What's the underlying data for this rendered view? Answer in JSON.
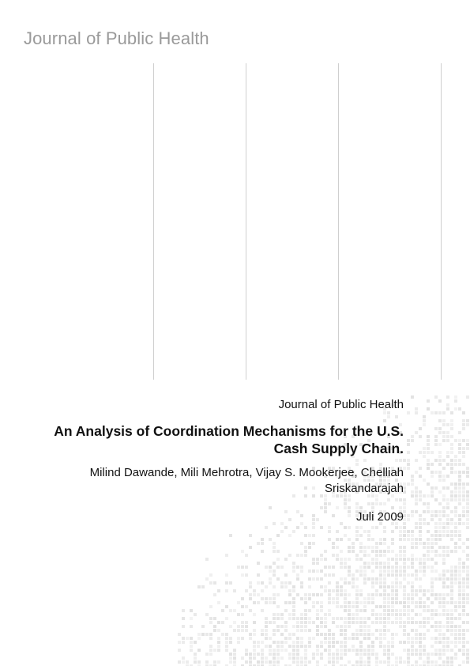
{
  "header": {
    "journal": "Journal of Public Health"
  },
  "info": {
    "journal_name": "Journal of Public Health",
    "title_lines": [
      "An Analysis of Coordination Mechanisms for the U.S.",
      "Cash Supply Chain."
    ],
    "author_lines": [
      "Milind Dawande, Mili Mehrotra, Vijay S. Mookerjee, Chelliah",
      "Sriskandarajah"
    ],
    "date": "Juli 2009"
  },
  "colors": {
    "header_text": "#9a9a9a",
    "divider": "#cfcfcf",
    "pattern": "#dcdcdc"
  }
}
